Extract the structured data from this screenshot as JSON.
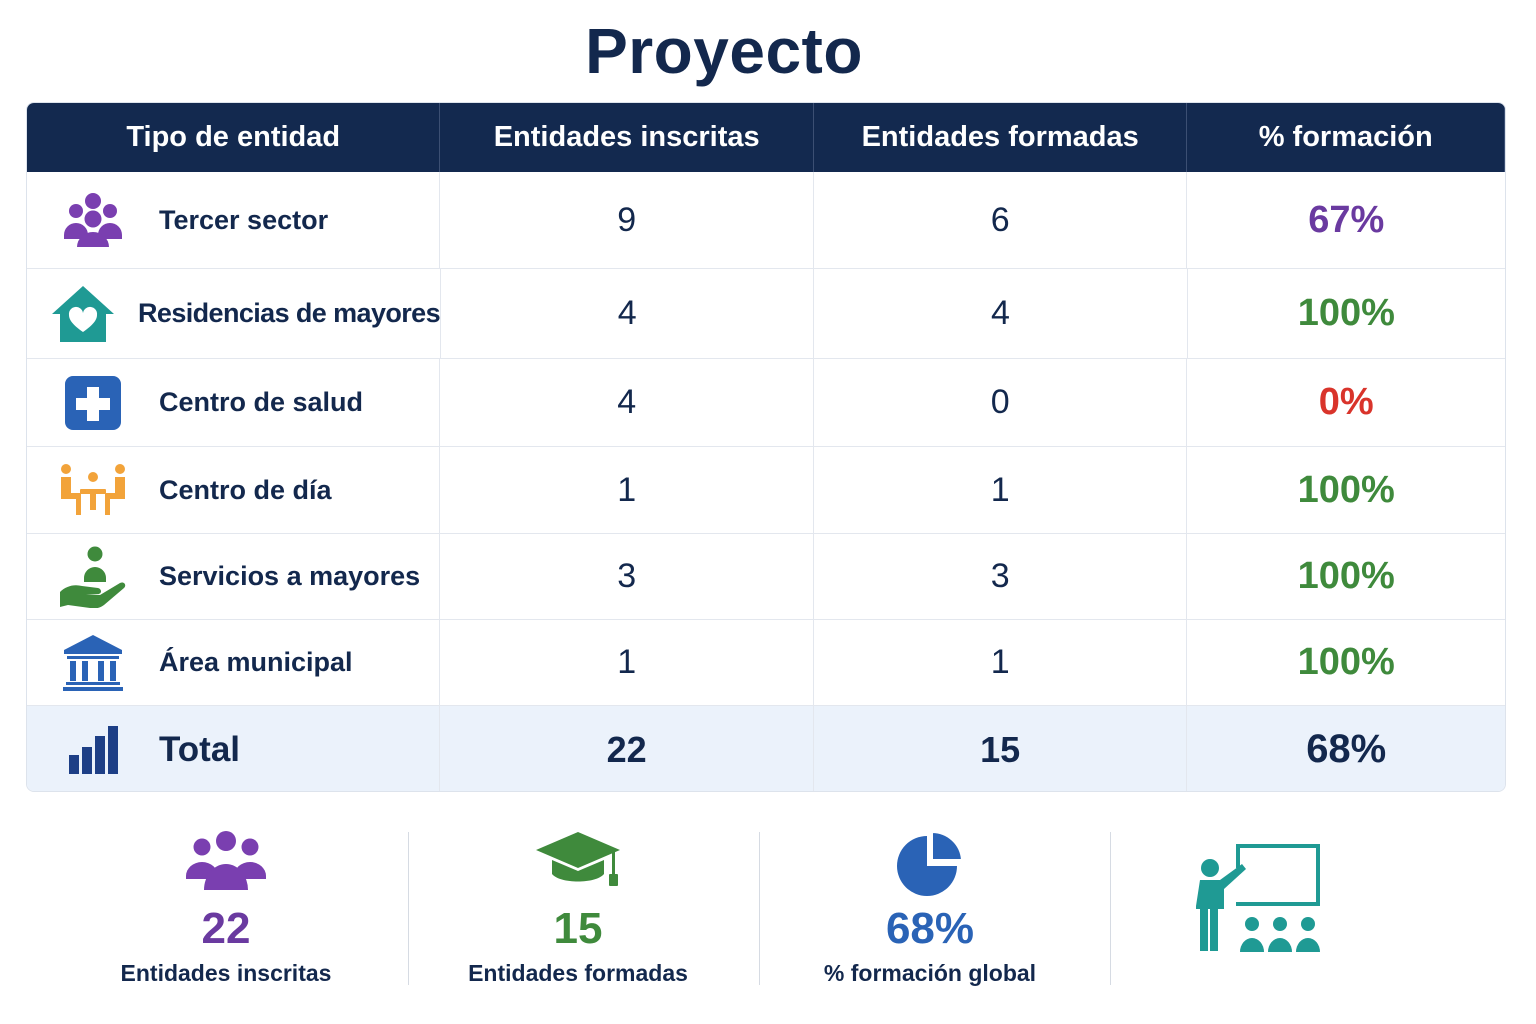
{
  "title": "Proyecto",
  "table": {
    "headers": [
      "Tipo de entidad",
      "Entidades inscritas",
      "Entidades formadas",
      "% formación"
    ],
    "rows": [
      {
        "label": "Tercer sector",
        "icon": "people-group-icon",
        "inscritas": "9",
        "formadas": "6",
        "pct": "67%",
        "pct_color": "#6a3aa0"
      },
      {
        "label": "Residencias de mayores",
        "icon": "house-heart-icon",
        "inscritas": "4",
        "formadas": "4",
        "pct": "100%",
        "pct_color": "#3f8a3c"
      },
      {
        "label": "Centro de salud",
        "icon": "medical-cross-icon",
        "inscritas": "4",
        "formadas": "0",
        "pct": "0%",
        "pct_color": "#d9342b"
      },
      {
        "label": "Centro de día",
        "icon": "people-table-icon",
        "inscritas": "1",
        "formadas": "1",
        "pct": "100%",
        "pct_color": "#3f8a3c"
      },
      {
        "label": "Servicios a mayores",
        "icon": "hand-care-icon",
        "inscritas": "3",
        "formadas": "3",
        "pct": "100%",
        "pct_color": "#3f8a3c"
      },
      {
        "label": "Área municipal",
        "icon": "building-columns-icon",
        "inscritas": "1",
        "formadas": "1",
        "pct": "100%",
        "pct_color": "#3f8a3c"
      }
    ],
    "total": {
      "label": "Total",
      "icon": "bar-chart-icon",
      "inscritas": "22",
      "formadas": "15",
      "pct": "68%"
    }
  },
  "stats": [
    {
      "value": "22",
      "label": "Entidades inscritas",
      "icon": "people-group-icon",
      "color": "#6a3aa0"
    },
    {
      "value": "15",
      "label": "Entidades formadas",
      "icon": "graduation-cap-icon",
      "color": "#3f8a3c"
    },
    {
      "value": "68%",
      "label": "% formación global",
      "icon": "pie-chart-icon",
      "color": "#2a63b6"
    },
    {
      "icon": "teacher-board-icon",
      "color": "#1f9a94"
    }
  ],
  "colors": {
    "navy": "#13294f",
    "purple": "#6a3aa0",
    "green": "#3f8a3c",
    "red": "#d9342b",
    "blue": "#2a63b6",
    "teal": "#1f9a94",
    "orange": "#f2a33a"
  }
}
